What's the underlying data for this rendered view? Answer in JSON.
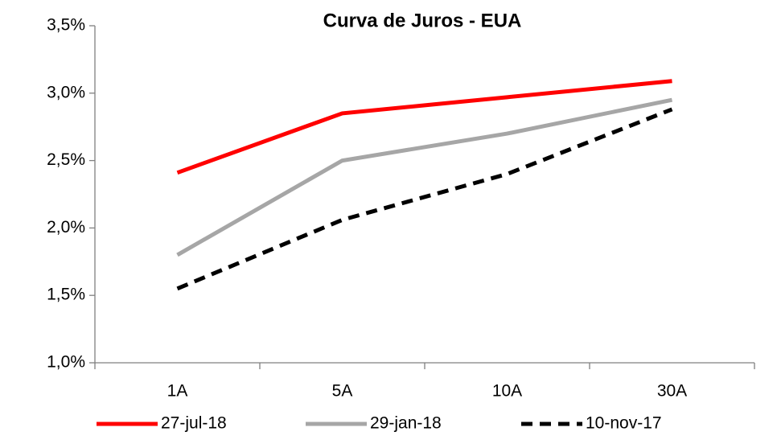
{
  "chart_data": {
    "type": "line",
    "title": "Curva de Juros - EUA",
    "categories": [
      "1A",
      "5A",
      "10A",
      "30A"
    ],
    "series": [
      {
        "name": "27-jul-18",
        "color": "#ff0000",
        "dash": "solid",
        "values": [
          2.41,
          2.85,
          2.97,
          3.09
        ]
      },
      {
        "name": "29-jan-18",
        "color": "#a6a6a6",
        "dash": "solid",
        "values": [
          1.8,
          2.5,
          2.7,
          2.95
        ]
      },
      {
        "name": "10-nov-17",
        "color": "#000000",
        "dash": "dashed",
        "values": [
          1.55,
          2.06,
          2.4,
          2.88
        ]
      }
    ],
    "ylim": [
      1.0,
      3.5
    ],
    "yticks": [
      {
        "value": 1.0,
        "label": "1,0%"
      },
      {
        "value": 1.5,
        "label": "1,5%"
      },
      {
        "value": 2.0,
        "label": "2,0%"
      },
      {
        "value": 2.5,
        "label": "2,5%"
      },
      {
        "value": 3.0,
        "label": "3,0%"
      },
      {
        "value": 3.5,
        "label": "3,5%"
      }
    ],
    "grid": false,
    "legend": "bottom"
  }
}
